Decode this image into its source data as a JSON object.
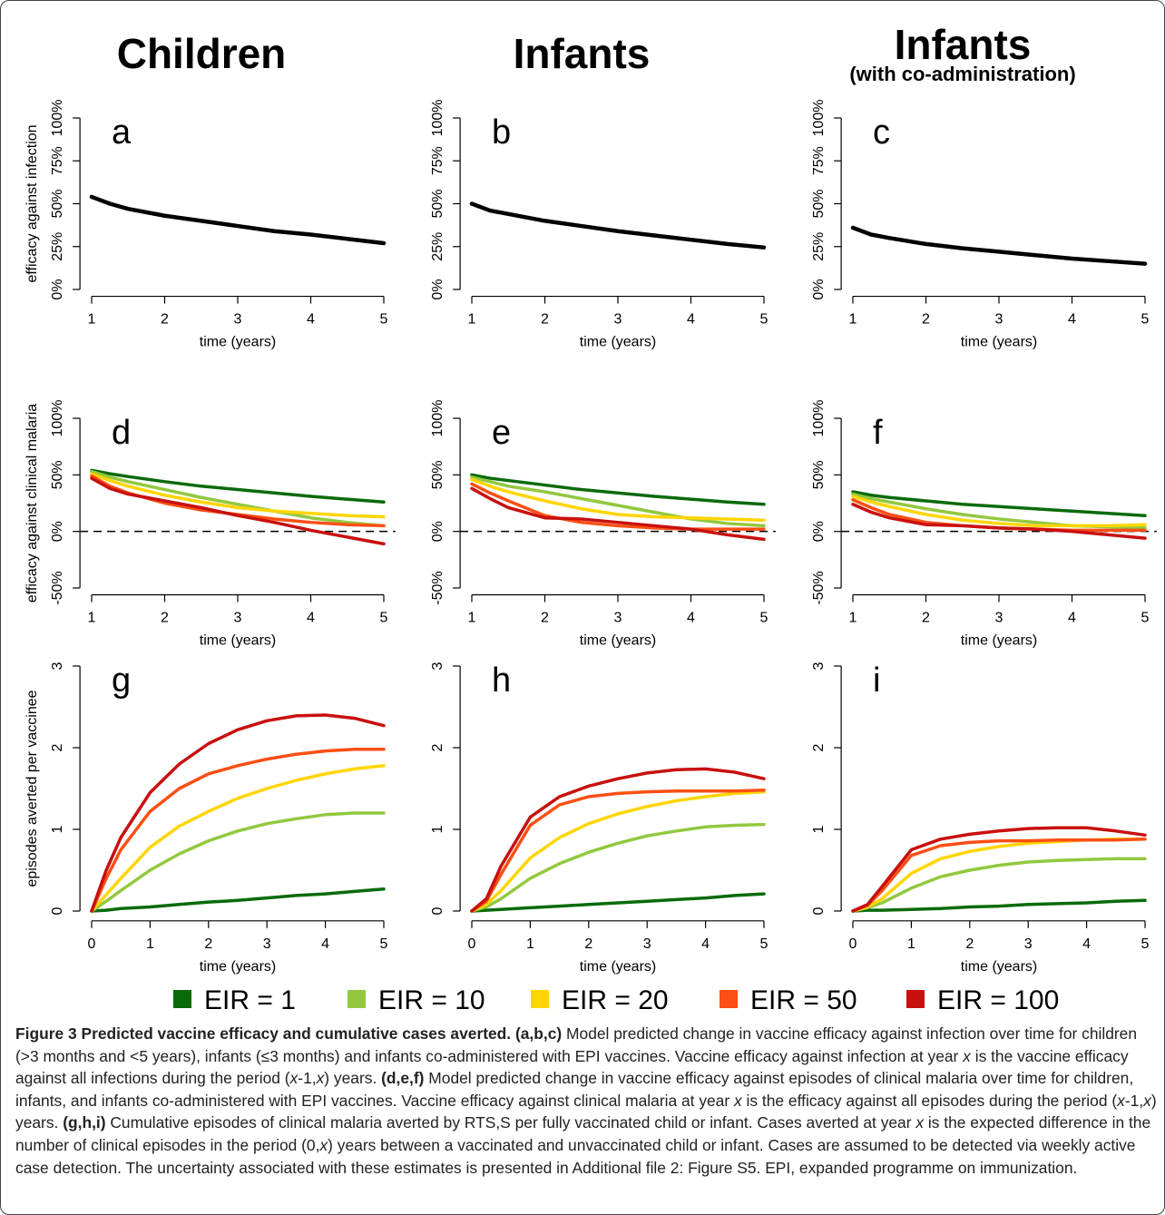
{
  "column_titles": [
    {
      "title": "Children"
    },
    {
      "title": "Infants"
    },
    {
      "title": "Infants",
      "subtitle": "(with co-administration)"
    }
  ],
  "legend": {
    "entries": [
      {
        "name": "EIR = 1",
        "color": "#0a6a0a"
      },
      {
        "name": "EIR = 10",
        "color": "#92c83e"
      },
      {
        "name": "EIR = 20",
        "color": "#ffd500"
      },
      {
        "name": "EIR = 50",
        "color": "#fb4f14"
      },
      {
        "name": "EIR = 100",
        "color": "#c8100f"
      }
    ]
  },
  "chart_data": [
    {
      "type": "line",
      "label": "a",
      "ylabel": "efficacy against infection",
      "xlabel": "time (years)",
      "x": [
        1,
        1.25,
        1.5,
        2,
        2.5,
        3,
        3.5,
        4,
        4.5,
        5
      ],
      "xlim": [
        1,
        5
      ],
      "xticks": [
        1,
        2,
        3,
        4,
        5
      ],
      "ylim": [
        0,
        100
      ],
      "yticks": [
        {
          "value": 0,
          "label": "0%"
        },
        {
          "value": 25,
          "label": "25%"
        },
        {
          "value": 50,
          "label": "50%"
        },
        {
          "value": 75,
          "label": "75%"
        },
        {
          "value": 100,
          "label": "100%"
        }
      ],
      "series": [
        {
          "color": "#000000",
          "values": [
            54,
            50,
            47,
            43,
            40,
            37,
            34,
            32,
            29.5,
            27
          ]
        }
      ]
    },
    {
      "type": "line",
      "label": "b",
      "xlabel": "time (years)",
      "x": [
        1,
        1.25,
        1.5,
        2,
        2.5,
        3,
        3.5,
        4,
        4.5,
        5
      ],
      "xlim": [
        1,
        5
      ],
      "xticks": [
        1,
        2,
        3,
        4,
        5
      ],
      "ylim": [
        0,
        100
      ],
      "yticks": [
        {
          "value": 0,
          "label": "0%"
        },
        {
          "value": 25,
          "label": "25%"
        },
        {
          "value": 50,
          "label": "50%"
        },
        {
          "value": 75,
          "label": "75%"
        },
        {
          "value": 100,
          "label": "100%"
        }
      ],
      "series": [
        {
          "color": "#000000",
          "values": [
            50,
            46,
            44,
            40,
            37,
            34,
            31.5,
            29,
            26.5,
            24.5
          ]
        }
      ]
    },
    {
      "type": "line",
      "label": "c",
      "xlabel": "time (years)",
      "x": [
        1,
        1.25,
        1.5,
        2,
        2.5,
        3,
        3.5,
        4,
        4.5,
        5
      ],
      "xlim": [
        1,
        5
      ],
      "xticks": [
        1,
        2,
        3,
        4,
        5
      ],
      "ylim": [
        0,
        100
      ],
      "yticks": [
        {
          "value": 0,
          "label": "0%"
        },
        {
          "value": 25,
          "label": "25%"
        },
        {
          "value": 50,
          "label": "50%"
        },
        {
          "value": 75,
          "label": "75%"
        },
        {
          "value": 100,
          "label": "100%"
        }
      ],
      "series": [
        {
          "color": "#000000",
          "values": [
            36,
            32,
            30,
            26.5,
            24,
            22,
            20,
            18,
            16.5,
            15
          ]
        }
      ]
    },
    {
      "type": "line",
      "label": "d",
      "ylabel": "efficacy against clinical malaria",
      "xlabel": "time (years)",
      "x": [
        1,
        1.25,
        1.5,
        2,
        2.5,
        3,
        3.5,
        4,
        4.5,
        5
      ],
      "xlim": [
        1,
        5
      ],
      "xticks": [
        1,
        2,
        3,
        4,
        5
      ],
      "ylim": [
        -50,
        100
      ],
      "yticks": [
        {
          "value": -50,
          "label": "-50%"
        },
        {
          "value": 0,
          "label": "0%"
        },
        {
          "value": 50,
          "label": "50%"
        },
        {
          "value": 100,
          "label": "100%"
        }
      ],
      "reference_line": 0,
      "series": [
        {
          "values": [
            54,
            51,
            48.5,
            44,
            40,
            37,
            34,
            31,
            28.5,
            26
          ]
        },
        {
          "values": [
            53,
            48,
            44,
            37,
            30,
            24,
            18,
            12,
            8,
            5
          ]
        },
        {
          "values": [
            51,
            45,
            40,
            32,
            26,
            21,
            18,
            16,
            14,
            13
          ]
        },
        {
          "values": [
            49,
            40,
            34,
            25,
            19,
            15,
            11,
            8,
            6,
            5
          ]
        },
        {
          "values": [
            47,
            38,
            33,
            27,
            21,
            14,
            8,
            1,
            -5,
            -11
          ]
        }
      ]
    },
    {
      "type": "line",
      "label": "e",
      "xlabel": "time (years)",
      "x": [
        1,
        1.25,
        1.5,
        2,
        2.5,
        3,
        3.5,
        4,
        4.5,
        5
      ],
      "xlim": [
        1,
        5
      ],
      "xticks": [
        1,
        2,
        3,
        4,
        5
      ],
      "ylim": [
        -50,
        100
      ],
      "yticks": [
        {
          "value": -50,
          "label": "-50%"
        },
        {
          "value": 0,
          "label": "0%"
        },
        {
          "value": 50,
          "label": "50%"
        },
        {
          "value": 100,
          "label": "100%"
        }
      ],
      "reference_line": 0,
      "series": [
        {
          "values": [
            50,
            47,
            45,
            41,
            37,
            34,
            31,
            28.5,
            26,
            24
          ]
        },
        {
          "values": [
            48,
            44,
            40,
            35,
            29,
            23,
            17,
            11,
            7,
            5
          ]
        },
        {
          "values": [
            46,
            40,
            35,
            27,
            20,
            15,
            13,
            12,
            11,
            10
          ]
        },
        {
          "values": [
            42,
            34,
            27,
            14,
            8,
            5,
            3,
            2,
            2,
            2
          ]
        },
        {
          "values": [
            38,
            29,
            21,
            12,
            11,
            8,
            5,
            2,
            -3,
            -7
          ]
        }
      ]
    },
    {
      "type": "line",
      "label": "f",
      "xlabel": "time (years)",
      "x": [
        1,
        1.25,
        1.5,
        2,
        2.5,
        3,
        3.5,
        4,
        4.5,
        5
      ],
      "xlim": [
        1,
        5
      ],
      "xticks": [
        1,
        2,
        3,
        4,
        5
      ],
      "ylim": [
        -50,
        100
      ],
      "yticks": [
        {
          "value": -50,
          "label": "-50%"
        },
        {
          "value": 0,
          "label": "0%"
        },
        {
          "value": 50,
          "label": "50%"
        },
        {
          "value": 100,
          "label": "100%"
        }
      ],
      "reference_line": 0,
      "series": [
        {
          "values": [
            35,
            32,
            30,
            27,
            24,
            22,
            20,
            18,
            16,
            14
          ]
        },
        {
          "values": [
            33,
            29,
            26,
            20,
            15,
            11,
            8,
            5,
            4,
            3
          ]
        },
        {
          "values": [
            31,
            26,
            22,
            15,
            10,
            7,
            5,
            5,
            5,
            6
          ]
        },
        {
          "values": [
            28,
            21,
            15,
            8,
            5,
            3,
            2,
            1,
            1,
            1
          ]
        },
        {
          "values": [
            24,
            17,
            12,
            6,
            5,
            3,
            2,
            0,
            -3,
            -6
          ]
        }
      ]
    },
    {
      "type": "line",
      "label": "g",
      "ylabel": "episodes averted per vaccinee",
      "xlabel": "time (years)",
      "x": [
        0,
        0.25,
        0.5,
        1,
        1.5,
        2,
        2.5,
        3,
        3.5,
        4,
        4.5,
        5
      ],
      "xlim": [
        0,
        5
      ],
      "xticks": [
        0,
        1,
        2,
        3,
        4,
        5
      ],
      "ylim": [
        0,
        3
      ],
      "yticks": [
        0,
        1,
        2,
        3
      ],
      "series": [
        {
          "values": [
            0,
            0.01,
            0.03,
            0.05,
            0.08,
            0.11,
            0.13,
            0.16,
            0.19,
            0.21,
            0.24,
            0.27
          ]
        },
        {
          "values": [
            0,
            0.12,
            0.25,
            0.5,
            0.7,
            0.86,
            0.98,
            1.07,
            1.13,
            1.18,
            1.2,
            1.2
          ]
        },
        {
          "values": [
            0,
            0.2,
            0.4,
            0.78,
            1.04,
            1.22,
            1.38,
            1.5,
            1.6,
            1.68,
            1.74,
            1.78
          ]
        },
        {
          "values": [
            0,
            0.4,
            0.75,
            1.22,
            1.5,
            1.68,
            1.78,
            1.86,
            1.92,
            1.96,
            1.98,
            1.98
          ]
        },
        {
          "values": [
            0,
            0.5,
            0.9,
            1.45,
            1.8,
            2.05,
            2.22,
            2.33,
            2.39,
            2.4,
            2.36,
            2.27
          ]
        }
      ]
    },
    {
      "type": "line",
      "label": "h",
      "xlabel": "time (years)",
      "x": [
        0,
        0.25,
        0.5,
        1,
        1.5,
        2,
        2.5,
        3,
        3.5,
        4,
        4.5,
        5
      ],
      "xlim": [
        0,
        5
      ],
      "xticks": [
        0,
        1,
        2,
        3,
        4,
        5
      ],
      "ylim": [
        0,
        3
      ],
      "yticks": [
        0,
        1,
        2,
        3
      ],
      "series": [
        {
          "values": [
            0,
            0.01,
            0.02,
            0.04,
            0.06,
            0.08,
            0.1,
            0.12,
            0.14,
            0.16,
            0.19,
            0.21
          ]
        },
        {
          "values": [
            0,
            0.05,
            0.15,
            0.4,
            0.58,
            0.72,
            0.83,
            0.92,
            0.98,
            1.03,
            1.05,
            1.06
          ]
        },
        {
          "values": [
            0,
            0.08,
            0.25,
            0.65,
            0.9,
            1.07,
            1.19,
            1.28,
            1.35,
            1.4,
            1.44,
            1.46
          ]
        },
        {
          "values": [
            0,
            0.12,
            0.45,
            1.05,
            1.3,
            1.4,
            1.44,
            1.46,
            1.47,
            1.47,
            1.47,
            1.48
          ]
        },
        {
          "values": [
            0,
            0.15,
            0.55,
            1.15,
            1.4,
            1.53,
            1.62,
            1.69,
            1.73,
            1.74,
            1.7,
            1.62
          ]
        }
      ]
    },
    {
      "type": "line",
      "label": "i",
      "xlabel": "time (years)",
      "x": [
        0,
        0.25,
        0.5,
        1,
        1.5,
        2,
        2.5,
        3,
        3.5,
        4,
        4.5,
        5
      ],
      "xlim": [
        0,
        5
      ],
      "xticks": [
        0,
        1,
        2,
        3,
        4,
        5
      ],
      "ylim": [
        0,
        3
      ],
      "yticks": [
        0,
        1,
        2,
        3
      ],
      "series": [
        {
          "values": [
            0,
            0.01,
            0.01,
            0.02,
            0.03,
            0.05,
            0.06,
            0.08,
            0.09,
            0.1,
            0.12,
            0.13
          ]
        },
        {
          "values": [
            0,
            0.04,
            0.1,
            0.28,
            0.42,
            0.5,
            0.56,
            0.6,
            0.62,
            0.63,
            0.64,
            0.64
          ]
        },
        {
          "values": [
            0,
            0.05,
            0.15,
            0.46,
            0.64,
            0.73,
            0.79,
            0.83,
            0.85,
            0.87,
            0.88,
            0.88
          ]
        },
        {
          "values": [
            0,
            0.07,
            0.25,
            0.68,
            0.8,
            0.84,
            0.86,
            0.86,
            0.87,
            0.87,
            0.87,
            0.88
          ]
        },
        {
          "values": [
            0,
            0.08,
            0.3,
            0.75,
            0.88,
            0.94,
            0.98,
            1.01,
            1.02,
            1.02,
            0.98,
            0.93
          ]
        }
      ]
    }
  ],
  "caption": [
    {
      "text": "Figure 3 Predicted vaccine efficacy and cumulative cases averted.",
      "style": "bold"
    },
    {
      "text": " ",
      "style": "normal"
    },
    {
      "text": "(a,b,c)",
      "style": "bold"
    },
    {
      "text": " Model predicted change in vaccine efficacy against infection over time for children (>3 months and <5 years), infants (≤3 months) and infants co-administered with EPI vaccines. Vaccine efficacy against infection at year ",
      "style": "normal"
    },
    {
      "text": "x",
      "style": "italic"
    },
    {
      "text": " is the vaccine efficacy against all infections during the period (",
      "style": "normal"
    },
    {
      "text": "x",
      "style": "italic"
    },
    {
      "text": "-1,",
      "style": "normal"
    },
    {
      "text": "x",
      "style": "italic"
    },
    {
      "text": ") years. ",
      "style": "normal"
    },
    {
      "text": "(d,e,f)",
      "style": "bold"
    },
    {
      "text": " Model predicted change in vaccine efficacy against episodes of clinical malaria over time for children, infants, and infants co-administered with EPI vaccines. Vaccine efficacy against clinical malaria at year ",
      "style": "normal"
    },
    {
      "text": "x",
      "style": "italic"
    },
    {
      "text": " is the efficacy against all episodes during the period (",
      "style": "normal"
    },
    {
      "text": "x",
      "style": "italic"
    },
    {
      "text": "-1,",
      "style": "normal"
    },
    {
      "text": "x",
      "style": "italic"
    },
    {
      "text": ") years. ",
      "style": "normal"
    },
    {
      "text": "(g,h,i)",
      "style": "bold"
    },
    {
      "text": " Cumulative episodes of clinical malaria averted by RTS,S per fully vaccinated child or infant. Cases averted at year ",
      "style": "normal"
    },
    {
      "text": "x",
      "style": "italic"
    },
    {
      "text": " is the expected difference in the number of clinical episodes in the period (0,",
      "style": "normal"
    },
    {
      "text": "x",
      "style": "italic"
    },
    {
      "text": ") years between a vaccinated and unvaccinated child or infant. Cases are assumed to be detected via weekly active case detection. The uncertainty associated with these estimates is presented in Additional file 2: Figure S5. EPI, expanded programme on immunization.",
      "style": "normal"
    }
  ]
}
